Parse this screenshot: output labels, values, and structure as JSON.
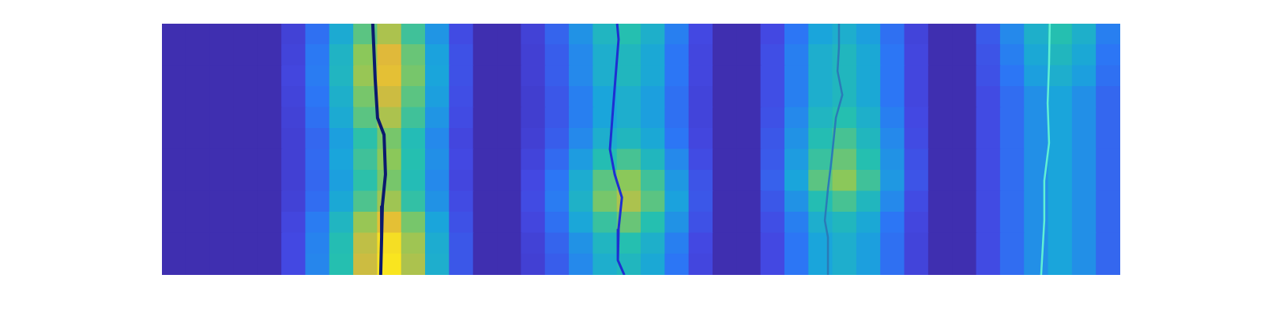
{
  "chart_data": {
    "type": "heatmap",
    "xlim": [
      0,
      40
    ],
    "ylim": [
      0,
      12
    ],
    "tick_labels": false,
    "grid": false,
    "color_range": [
      0,
      1
    ],
    "cells": [
      [
        0.02,
        0.02,
        0.02,
        0.02,
        0.02,
        0.12,
        0.28,
        0.48,
        0.68,
        0.8,
        0.64,
        0.4,
        0.16,
        0.02,
        0.02,
        0.12,
        0.24,
        0.39,
        0.54,
        0.6,
        0.51,
        0.33,
        0.15,
        0.02,
        0.02,
        0.15,
        0.3,
        0.45,
        0.5,
        0.43,
        0.28,
        0.13,
        0.02,
        0.02,
        0.21,
        0.36,
        0.51,
        0.6,
        0.51,
        0.33
      ],
      [
        0.02,
        0.02,
        0.02,
        0.02,
        0.02,
        0.13,
        0.31,
        0.53,
        0.75,
        0.88,
        0.7,
        0.44,
        0.18,
        0.02,
        0.02,
        0.11,
        0.22,
        0.36,
        0.5,
        0.55,
        0.47,
        0.3,
        0.14,
        0.02,
        0.02,
        0.17,
        0.33,
        0.5,
        0.55,
        0.47,
        0.3,
        0.14,
        0.02,
        0.02,
        0.19,
        0.33,
        0.47,
        0.55,
        0.47,
        0.3
      ],
      [
        0.02,
        0.02,
        0.02,
        0.02,
        0.02,
        0.14,
        0.32,
        0.54,
        0.77,
        0.9,
        0.72,
        0.45,
        0.18,
        0.02,
        0.02,
        0.11,
        0.22,
        0.36,
        0.5,
        0.55,
        0.47,
        0.3,
        0.14,
        0.02,
        0.02,
        0.17,
        0.33,
        0.5,
        0.55,
        0.47,
        0.3,
        0.14,
        0.02,
        0.02,
        0.18,
        0.3,
        0.43,
        0.5,
        0.43,
        0.28
      ],
      [
        0.02,
        0.02,
        0.02,
        0.02,
        0.02,
        0.13,
        0.3,
        0.51,
        0.72,
        0.85,
        0.68,
        0.43,
        0.17,
        0.02,
        0.02,
        0.1,
        0.2,
        0.33,
        0.45,
        0.5,
        0.43,
        0.28,
        0.13,
        0.02,
        0.02,
        0.17,
        0.33,
        0.5,
        0.55,
        0.47,
        0.3,
        0.14,
        0.02,
        0.02,
        0.16,
        0.27,
        0.38,
        0.45,
        0.38,
        0.25
      ],
      [
        0.02,
        0.02,
        0.02,
        0.02,
        0.02,
        0.12,
        0.28,
        0.48,
        0.68,
        0.8,
        0.64,
        0.4,
        0.16,
        0.02,
        0.02,
        0.1,
        0.2,
        0.33,
        0.45,
        0.5,
        0.43,
        0.28,
        0.13,
        0.02,
        0.02,
        0.18,
        0.36,
        0.54,
        0.6,
        0.51,
        0.33,
        0.15,
        0.02,
        0.02,
        0.16,
        0.27,
        0.38,
        0.45,
        0.38,
        0.25
      ],
      [
        0.02,
        0.02,
        0.02,
        0.02,
        0.02,
        0.11,
        0.25,
        0.43,
        0.61,
        0.72,
        0.58,
        0.36,
        0.14,
        0.02,
        0.02,
        0.11,
        0.22,
        0.36,
        0.5,
        0.55,
        0.47,
        0.3,
        0.14,
        0.02,
        0.02,
        0.2,
        0.39,
        0.59,
        0.65,
        0.55,
        0.36,
        0.16,
        0.02,
        0.02,
        0.16,
        0.27,
        0.38,
        0.45,
        0.38,
        0.25
      ],
      [
        0.02,
        0.02,
        0.02,
        0.02,
        0.02,
        0.11,
        0.26,
        0.45,
        0.64,
        0.75,
        0.6,
        0.38,
        0.15,
        0.02,
        0.02,
        0.13,
        0.26,
        0.42,
        0.59,
        0.65,
        0.55,
        0.36,
        0.16,
        0.02,
        0.02,
        0.21,
        0.42,
        0.63,
        0.7,
        0.6,
        0.39,
        0.18,
        0.02,
        0.02,
        0.16,
        0.27,
        0.38,
        0.45,
        0.38,
        0.25
      ],
      [
        0.02,
        0.02,
        0.02,
        0.02,
        0.02,
        0.11,
        0.25,
        0.43,
        0.61,
        0.72,
        0.58,
        0.36,
        0.14,
        0.02,
        0.02,
        0.15,
        0.3,
        0.49,
        0.68,
        0.75,
        0.64,
        0.41,
        0.19,
        0.02,
        0.02,
        0.23,
        0.45,
        0.68,
        0.75,
        0.64,
        0.41,
        0.19,
        0.02,
        0.02,
        0.16,
        0.27,
        0.38,
        0.45,
        0.38,
        0.25
      ],
      [
        0.02,
        0.02,
        0.02,
        0.02,
        0.02,
        0.12,
        0.27,
        0.47,
        0.66,
        0.78,
        0.62,
        0.39,
        0.16,
        0.02,
        0.02,
        0.16,
        0.32,
        0.52,
        0.72,
        0.8,
        0.68,
        0.44,
        0.2,
        0.02,
        0.02,
        0.2,
        0.39,
        0.59,
        0.65,
        0.55,
        0.36,
        0.16,
        0.02,
        0.02,
        0.16,
        0.27,
        0.38,
        0.45,
        0.38,
        0.25
      ],
      [
        0.02,
        0.02,
        0.02,
        0.02,
        0.02,
        0.14,
        0.32,
        0.54,
        0.77,
        0.9,
        0.72,
        0.45,
        0.18,
        0.02,
        0.02,
        0.14,
        0.28,
        0.46,
        0.63,
        0.7,
        0.6,
        0.39,
        0.18,
        0.02,
        0.02,
        0.17,
        0.33,
        0.5,
        0.55,
        0.47,
        0.3,
        0.14,
        0.02,
        0.02,
        0.16,
        0.27,
        0.38,
        0.45,
        0.38,
        0.25
      ],
      [
        0.02,
        0.02,
        0.02,
        0.02,
        0.02,
        0.15,
        0.34,
        0.59,
        0.83,
        0.98,
        0.78,
        0.49,
        0.2,
        0.02,
        0.02,
        0.12,
        0.24,
        0.39,
        0.54,
        0.6,
        0.51,
        0.33,
        0.15,
        0.02,
        0.02,
        0.15,
        0.3,
        0.45,
        0.5,
        0.43,
        0.28,
        0.13,
        0.02,
        0.02,
        0.16,
        0.27,
        0.38,
        0.45,
        0.38,
        0.25
      ],
      [
        0.02,
        0.02,
        0.02,
        0.02,
        0.02,
        0.15,
        0.35,
        0.6,
        0.85,
        1,
        0.8,
        0.5,
        0.2,
        0.02,
        0.02,
        0.11,
        0.22,
        0.36,
        0.5,
        0.55,
        0.47,
        0.3,
        0.14,
        0.02,
        0.02,
        0.15,
        0.3,
        0.45,
        0.5,
        0.43,
        0.28,
        0.13,
        0.02,
        0.02,
        0.16,
        0.27,
        0.38,
        0.45,
        0.38,
        0.25
      ]
    ],
    "series": [
      {
        "type": "line",
        "color": "#0b1a6e",
        "x": [
          8.8,
          8.9,
          9.0,
          9.27,
          9.33,
          9.2,
          9.17,
          9.13
        ],
        "values": [
          0,
          2.64,
          4.5,
          5.3,
          7.2,
          8.7,
          10.2,
          12
        ]
      },
      {
        "type": "line",
        "color": "#1e2fd2",
        "x": [
          19.0,
          19.06,
          18.93,
          18.8,
          18.7,
          18.9,
          19.2,
          19.06,
          19.03,
          19.3
        ],
        "values": [
          0,
          0.75,
          2.6,
          4.5,
          6.0,
          7.2,
          8.3,
          9.8,
          11.3,
          12
        ]
      },
      {
        "type": "line",
        "color": "#2a7ab8",
        "x": [
          28.26,
          28.26,
          28.2,
          28.4,
          28.13,
          27.96,
          27.8,
          27.67,
          27.8,
          27.8
        ],
        "values": [
          0,
          1.13,
          2.26,
          3.4,
          4.5,
          6.4,
          7.9,
          9.4,
          10.2,
          12
        ]
      },
      {
        "type": "line",
        "color": "#5ff0d4",
        "x": [
          37.06,
          37.03,
          36.97,
          37.03,
          36.83,
          36.83,
          36.7
        ],
        "values": [
          0,
          1.9,
          3.8,
          5.7,
          7.5,
          9.4,
          12
        ]
      }
    ]
  }
}
